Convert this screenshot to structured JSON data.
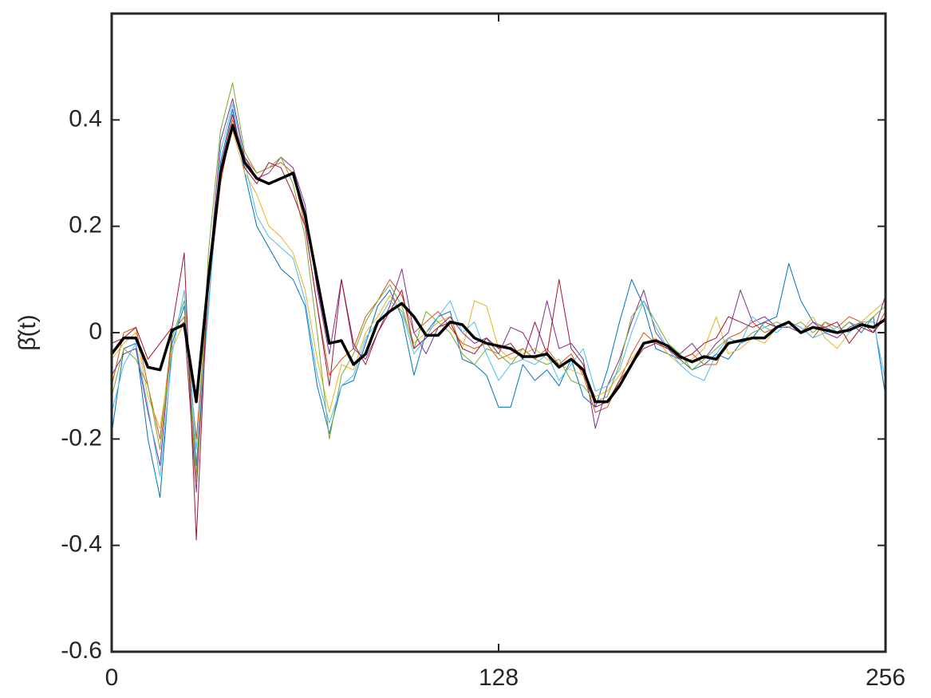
{
  "chart_data": {
    "type": "line",
    "ylabel": "β̂(t)",
    "xlim": [
      0,
      256
    ],
    "xticks": [
      0,
      128,
      256
    ],
    "ylim": [
      -0.6,
      0.6
    ],
    "yticks": [
      -0.6,
      -0.4,
      -0.2,
      0,
      0.2,
      0.4
    ],
    "x": [
      0,
      4,
      8,
      12,
      16,
      20,
      24,
      28,
      32,
      36,
      40,
      44,
      48,
      52,
      56,
      60,
      64,
      68,
      72,
      76,
      80,
      84,
      88,
      92,
      96,
      100,
      104,
      108,
      112,
      116,
      120,
      124,
      128,
      132,
      136,
      140,
      144,
      148,
      152,
      156,
      160,
      164,
      168,
      172,
      176,
      180,
      184,
      188,
      192,
      196,
      200,
      204,
      208,
      212,
      216,
      220,
      224,
      228,
      232,
      236,
      240,
      244,
      248,
      252,
      256
    ],
    "series": [
      {
        "color": "#0072BD",
        "width": 1,
        "values": [
          -0.19,
          -0.03,
          -0.02,
          -0.2,
          -0.31,
          -0.02,
          0.05,
          -0.25,
          0.05,
          0.32,
          0.42,
          0.3,
          0.2,
          0.16,
          0.12,
          0.1,
          0.05,
          -0.1,
          -0.19,
          -0.1,
          -0.09,
          -0.02,
          0.05,
          0.08,
          0.03,
          -0.08,
          0.0,
          0.03,
          0.04,
          -0.05,
          -0.06,
          -0.08,
          -0.14,
          -0.14,
          -0.06,
          -0.09,
          -0.07,
          -0.1,
          -0.05,
          -0.12,
          -0.14,
          -0.07,
          0.02,
          0.1,
          0.05,
          -0.03,
          -0.04,
          -0.05,
          -0.07,
          -0.06,
          -0.04,
          -0.05,
          -0.02,
          -0.01,
          0.02,
          0.03,
          0.13,
          0.06,
          0.02,
          0.01,
          0.0,
          0.02,
          0.0,
          0.03,
          -0.12
        ]
      },
      {
        "color": "#D95319",
        "width": 1,
        "values": [
          -0.1,
          0.0,
          0.01,
          -0.1,
          -0.2,
          0.0,
          0.03,
          -0.2,
          0.08,
          0.28,
          0.4,
          0.33,
          0.3,
          0.31,
          0.32,
          0.3,
          0.2,
          0.05,
          -0.08,
          -0.05,
          -0.03,
          0.03,
          0.06,
          0.1,
          0.07,
          0.0,
          0.02,
          0.04,
          0.01,
          -0.02,
          -0.03,
          -0.02,
          -0.05,
          -0.04,
          -0.03,
          -0.05,
          -0.03,
          -0.06,
          -0.04,
          -0.08,
          -0.15,
          -0.14,
          -0.09,
          -0.04,
          0.0,
          -0.02,
          -0.03,
          -0.05,
          -0.04,
          -0.06,
          -0.06,
          -0.01,
          0.0,
          0.02,
          0.0,
          0.01,
          0.02,
          0.01,
          -0.01,
          0.02,
          0.01,
          0.03,
          0.02,
          0.0,
          0.04
        ]
      },
      {
        "color": "#EDB120",
        "width": 1,
        "values": [
          -0.05,
          -0.02,
          0.0,
          -0.12,
          -0.18,
          -0.03,
          0.02,
          -0.28,
          0.12,
          0.3,
          0.38,
          0.3,
          0.26,
          0.2,
          0.18,
          0.15,
          0.08,
          -0.05,
          -0.15,
          -0.06,
          -0.07,
          0.0,
          0.03,
          0.07,
          0.04,
          -0.02,
          0.0,
          0.02,
          0.03,
          -0.03,
          0.06,
          0.05,
          -0.03,
          -0.05,
          -0.04,
          -0.03,
          -0.05,
          -0.06,
          -0.07,
          -0.08,
          -0.12,
          -0.11,
          -0.08,
          -0.05,
          -0.02,
          -0.01,
          -0.04,
          -0.06,
          -0.05,
          -0.03,
          0.03,
          -0.04,
          -0.03,
          -0.01,
          -0.02,
          0.01,
          0.02,
          0.0,
          0.03,
          -0.01,
          -0.03,
          0.0,
          0.02,
          0.04,
          0.06
        ]
      },
      {
        "color": "#7E2F8E",
        "width": 1,
        "values": [
          -0.08,
          -0.04,
          -0.03,
          -0.15,
          -0.25,
          0.0,
          0.02,
          -0.3,
          0.1,
          0.36,
          0.44,
          0.33,
          0.29,
          0.3,
          0.33,
          0.31,
          0.24,
          0.08,
          -0.04,
          0.1,
          -0.03,
          -0.05,
          0.0,
          0.05,
          0.12,
          0.0,
          -0.04,
          0.01,
          0.03,
          0.0,
          -0.02,
          -0.01,
          -0.04,
          0.01,
          0.0,
          -0.04,
          0.06,
          -0.03,
          -0.02,
          -0.05,
          -0.18,
          -0.1,
          -0.05,
          0.02,
          0.08,
          0.0,
          -0.03,
          -0.04,
          -0.02,
          -0.05,
          -0.02,
          0.0,
          0.08,
          0.02,
          0.03,
          0.01,
          0.01,
          0.0,
          0.02,
          0.0,
          -0.01,
          0.01,
          0.02,
          0.0,
          0.07
        ]
      },
      {
        "color": "#77AC30",
        "width": 1,
        "values": [
          -0.12,
          -0.03,
          -0.05,
          -0.1,
          -0.22,
          -0.01,
          0.06,
          -0.27,
          0.15,
          0.38,
          0.47,
          0.34,
          0.3,
          0.31,
          0.33,
          0.28,
          0.18,
          0.0,
          -0.2,
          -0.08,
          -0.04,
          0.02,
          0.06,
          0.09,
          0.05,
          -0.03,
          0.04,
          0.02,
          0.0,
          -0.04,
          -0.06,
          -0.03,
          -0.04,
          -0.06,
          -0.03,
          -0.05,
          -0.06,
          -0.05,
          -0.09,
          -0.1,
          -0.13,
          -0.12,
          -0.06,
          0.03,
          0.06,
          0.02,
          -0.02,
          -0.04,
          -0.07,
          -0.05,
          -0.03,
          -0.01,
          -0.02,
          0.0,
          0.01,
          0.02,
          0.01,
          0.02,
          0.0,
          0.02,
          0.0,
          0.02,
          0.01,
          0.03,
          0.05
        ]
      },
      {
        "color": "#4DBEEE",
        "width": 1,
        "values": [
          -0.15,
          -0.06,
          -0.02,
          -0.14,
          -0.27,
          -0.04,
          0.08,
          -0.22,
          0.04,
          0.34,
          0.43,
          0.32,
          0.22,
          0.18,
          0.16,
          0.14,
          0.06,
          -0.08,
          -0.17,
          -0.1,
          -0.08,
          -0.01,
          0.02,
          0.06,
          0.04,
          -0.04,
          -0.01,
          0.03,
          0.06,
          0.0,
          0.02,
          -0.04,
          -0.09,
          -0.06,
          -0.05,
          -0.06,
          -0.04,
          -0.09,
          -0.06,
          -0.03,
          -0.11,
          -0.1,
          -0.07,
          0.0,
          0.06,
          0.01,
          -0.03,
          -0.06,
          -0.08,
          -0.09,
          -0.04,
          -0.01,
          -0.02,
          0.03,
          0.01,
          0.0,
          0.02,
          0.01,
          -0.01,
          0.0,
          0.01,
          0.0,
          0.02,
          0.02,
          -0.09
        ]
      },
      {
        "color": "#A2142F",
        "width": 1,
        "values": [
          -0.02,
          -0.01,
          0.01,
          -0.05,
          -0.02,
          0.01,
          0.15,
          -0.39,
          0.12,
          0.31,
          0.41,
          0.31,
          0.28,
          0.32,
          0.31,
          0.26,
          0.2,
          0.05,
          -0.1,
          0.1,
          -0.02,
          -0.06,
          0.0,
          0.04,
          0.08,
          -0.03,
          -0.01,
          0.01,
          0.02,
          -0.03,
          -0.04,
          -0.01,
          -0.03,
          -0.02,
          -0.05,
          0.02,
          -0.04,
          0.1,
          -0.03,
          -0.06,
          -0.14,
          -0.13,
          -0.09,
          -0.06,
          -0.03,
          -0.02,
          -0.03,
          -0.05,
          -0.04,
          -0.02,
          -0.01,
          0.03,
          0.02,
          0.01,
          0.02,
          0.01,
          0.02,
          0.0,
          0.01,
          0.01,
          0.02,
          -0.02,
          0.01,
          0.0,
          0.03
        ]
      },
      {
        "color": "#000000",
        "width": 3.5,
        "values": [
          -0.04,
          -0.01,
          -0.01,
          -0.065,
          -0.07,
          0.005,
          0.015,
          -0.13,
          0.1,
          0.3,
          0.39,
          0.32,
          0.29,
          0.28,
          0.29,
          0.3,
          0.22,
          0.1,
          -0.02,
          -0.015,
          -0.06,
          -0.04,
          0.02,
          0.04,
          0.055,
          0.03,
          -0.005,
          -0.005,
          0.02,
          0.015,
          -0.01,
          -0.02,
          -0.025,
          -0.03,
          -0.045,
          -0.045,
          -0.04,
          -0.065,
          -0.05,
          -0.07,
          -0.13,
          -0.13,
          -0.1,
          -0.06,
          -0.02,
          -0.015,
          -0.025,
          -0.045,
          -0.055,
          -0.045,
          -0.05,
          -0.02,
          -0.015,
          -0.01,
          -0.01,
          0.01,
          0.02,
          0.0,
          0.01,
          0.005,
          0.0,
          0.005,
          0.015,
          0.01,
          0.025
        ]
      }
    ]
  }
}
